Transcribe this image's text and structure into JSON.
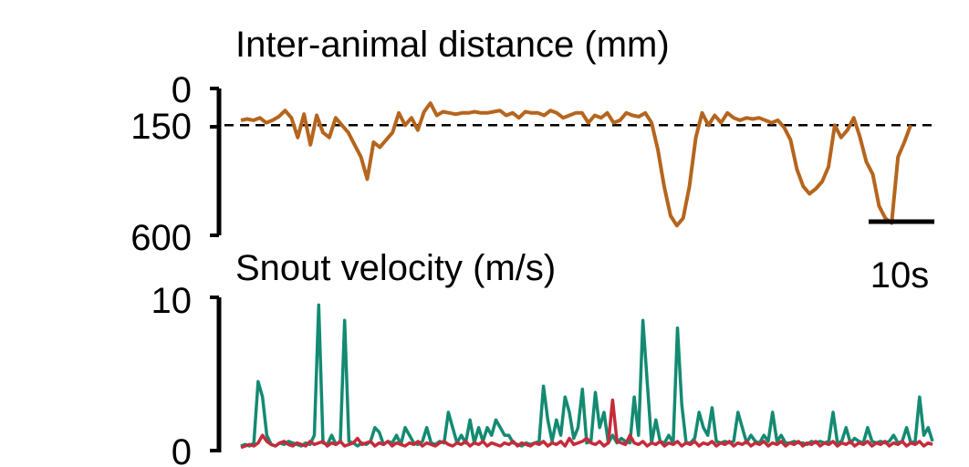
{
  "chart_data": [
    {
      "type": "line",
      "title": "Inter-animal distance (mm)",
      "xlabel": "",
      "ylabel": "",
      "ylim": [
        0,
        600
      ],
      "y_inverted": true,
      "yticks": [
        "0",
        "150",
        "600"
      ],
      "reference_line": {
        "y": 150,
        "style": "dashed"
      },
      "scale_bar": {
        "label": "10s",
        "seconds": 10
      },
      "grid": false,
      "colors": {
        "line": "#b5651d",
        "axis": "#000000"
      },
      "x": [
        0,
        1,
        2,
        3,
        4,
        5,
        6,
        7,
        8,
        9,
        10,
        11,
        12,
        13,
        14,
        15,
        16,
        17,
        18,
        19,
        20,
        21,
        22,
        23,
        24,
        25,
        26,
        27,
        28,
        29,
        30,
        31,
        32,
        33,
        34,
        35,
        36,
        37,
        38,
        39,
        40,
        41,
        42,
        43,
        44,
        45,
        46,
        47,
        48,
        49,
        50,
        51,
        52,
        53,
        54,
        55,
        56,
        57,
        58,
        59,
        60,
        61,
        62,
        63,
        64,
        65,
        66,
        67,
        68,
        69,
        70,
        71,
        72,
        73,
        74,
        75,
        76,
        77,
        78,
        79,
        80,
        81,
        82,
        83,
        84,
        85,
        86,
        87,
        88,
        89,
        90,
        91,
        92,
        93,
        94,
        95,
        96,
        97,
        98,
        99,
        100,
        101,
        102,
        103,
        104,
        105,
        106
      ],
      "values": [
        130,
        125,
        130,
        120,
        140,
        130,
        115,
        90,
        120,
        200,
        105,
        230,
        110,
        180,
        200,
        120,
        150,
        180,
        230,
        280,
        370,
        220,
        240,
        210,
        180,
        100,
        150,
        120,
        170,
        95,
        60,
        110,
        95,
        100,
        105,
        100,
        100,
        95,
        100,
        100,
        95,
        90,
        110,
        100,
        120,
        95,
        100,
        100,
        110,
        90,
        100,
        120,
        110,
        100,
        100,
        140,
        110,
        120,
        100,
        140,
        130,
        100,
        110,
        115,
        100,
        140,
        250,
        400,
        520,
        560,
        530,
        400,
        200,
        100,
        150,
        110,
        140,
        100,
        120,
        130,
        120,
        125,
        120,
        130,
        140,
        130,
        160,
        210,
        330,
        400,
        430,
        410,
        380,
        320,
        150,
        200,
        170,
        120,
        200,
        300,
        350,
        480,
        530,
        550,
        280,
        220,
        150
      ]
    },
    {
      "type": "line",
      "title": "Snout velocity (m/s)",
      "xlabel": "",
      "ylabel": "",
      "ylim": [
        0,
        10
      ],
      "yticks": [
        "0",
        "10"
      ],
      "grid": false,
      "colors": {
        "series_1": "#138a72",
        "series_2": "#c62b3a",
        "axis": "#000000"
      },
      "x": [
        0,
        1,
        2,
        3,
        4,
        5,
        6,
        7,
        8,
        9,
        10,
        11,
        12,
        13,
        14,
        15,
        16,
        17,
        18,
        19,
        20,
        21,
        22,
        23,
        24,
        25,
        26,
        27,
        28,
        29,
        30,
        31,
        32,
        33,
        34,
        35,
        36,
        37,
        38,
        39,
        40,
        41,
        42,
        43,
        44,
        45,
        46,
        47,
        48,
        49,
        50,
        51,
        52,
        53,
        54,
        55,
        56,
        57,
        58,
        59,
        60,
        61,
        62,
        63,
        64,
        65,
        66,
        67,
        68,
        69,
        70,
        71,
        72,
        73,
        74,
        75,
        76,
        77,
        78,
        79,
        80,
        81,
        82,
        83,
        84,
        85,
        86,
        87,
        88,
        89,
        90,
        91,
        92,
        93,
        94,
        95,
        96,
        97,
        98,
        99,
        100,
        101,
        102,
        103,
        104,
        105,
        106,
        107,
        108,
        109,
        110,
        111,
        112,
        113,
        114,
        115,
        116,
        117,
        118,
        119,
        120,
        121,
        122,
        123,
        124,
        125,
        126,
        127,
        128,
        129,
        130,
        131,
        132,
        133,
        134,
        135,
        136,
        137,
        138,
        139,
        140,
        141,
        142,
        143,
        144,
        145,
        146,
        147,
        148,
        149,
        150,
        151,
        152,
        153,
        154,
        155,
        156,
        157,
        158,
        159,
        160
      ],
      "series": [
        {
          "values": [
            0.3,
            0.4,
            0.3,
            0.5,
            4.5,
            3.5,
            1.0,
            0.4,
            0.3,
            0.5,
            0.4,
            0.6,
            0.5,
            0.4,
            0.3,
            0.5,
            0.4,
            1.0,
            9.5,
            0.5,
            0.4,
            1.0,
            0.4,
            0.6,
            8.5,
            0.6,
            0.5,
            0.3,
            0.5,
            0.4,
            0.6,
            1.5,
            1.2,
            0.4,
            0.6,
            0.5,
            1.0,
            0.4,
            1.5,
            1.0,
            0.5,
            0.4,
            0.6,
            1.5,
            0.5,
            0.4,
            0.6,
            0.5,
            2.5,
            1.5,
            0.5,
            1.0,
            0.5,
            2.0,
            0.5,
            1.5,
            0.6,
            1.5,
            1.0,
            2.0,
            1.5,
            1.0,
            1.0,
            0.5,
            0.4,
            0.3,
            0.5,
            0.4,
            0.5,
            0.6,
            4.2,
            2.0,
            0.6,
            2.0,
            1.0,
            3.5,
            2.5,
            0.8,
            1.5,
            4.0,
            0.5,
            0.6,
            3.8,
            1.5,
            2.5,
            0.5,
            1.0,
            0.5,
            0.8,
            0.6,
            0.5,
            3.5,
            1.0,
            8.5,
            4.5,
            0.5,
            2.0,
            0.6,
            0.5,
            1.0,
            0.5,
            8.0,
            3.0,
            0.5,
            0.5,
            0.8,
            2.5,
            1.5,
            1.0,
            2.8,
            0.6,
            0.5,
            0.6,
            0.5,
            0.6,
            2.5,
            1.5,
            0.5,
            1.0,
            0.6,
            0.5,
            1.0,
            0.6,
            2.5,
            0.6,
            1.0,
            0.5,
            0.5,
            0.6,
            0.5,
            0.5,
            0.4,
            0.6,
            0.5,
            0.6,
            0.5,
            0.6,
            2.5,
            0.5,
            0.6,
            1.5,
            0.5,
            0.8,
            0.6,
            0.5,
            1.5,
            0.6,
            0.5,
            0.6,
            0.5,
            0.6,
            1.0,
            0.5,
            0.6,
            1.5,
            0.5,
            0.6,
            3.5,
            1.0,
            1.5,
            0.6
          ],
          "color": "#138a72"
        },
        {
          "values": [
            0.2,
            0.3,
            0.4,
            0.3,
            0.5,
            1.0,
            0.6,
            0.4,
            0.3,
            0.5,
            0.6,
            0.4,
            0.3,
            0.5,
            0.4,
            0.3,
            0.6,
            0.4,
            0.5,
            0.6,
            0.3,
            0.5,
            0.4,
            0.6,
            0.3,
            0.4,
            0.5,
            0.8,
            0.4,
            0.5,
            0.6,
            0.3,
            0.5,
            0.4,
            0.6,
            0.3,
            0.5,
            0.4,
            0.3,
            0.5,
            0.4,
            0.6,
            0.3,
            0.5,
            0.4,
            0.3,
            0.5,
            0.6,
            0.4,
            0.3,
            0.5,
            0.4,
            0.6,
            0.3,
            0.5,
            0.4,
            0.6,
            0.3,
            0.5,
            0.4,
            0.3,
            0.5,
            0.4,
            0.6,
            0.3,
            0.5,
            0.4,
            0.3,
            0.5,
            0.4,
            0.6,
            0.3,
            0.5,
            0.4,
            0.6,
            0.3,
            0.8,
            0.4,
            0.5,
            0.6,
            0.8,
            0.5,
            0.4,
            0.6,
            0.3,
            0.5,
            3.3,
            0.6,
            0.5,
            0.4,
            1.0,
            0.5,
            0.4,
            0.6,
            0.3,
            0.5,
            0.4,
            0.6,
            0.3,
            0.5,
            0.4,
            0.6,
            0.3,
            0.5,
            0.4,
            0.6,
            0.3,
            0.5,
            0.4,
            0.6,
            0.3,
            0.5,
            0.4,
            0.6,
            0.3,
            0.5,
            0.4,
            0.6,
            0.3,
            0.5,
            0.4,
            0.6,
            0.3,
            0.5,
            0.4,
            0.6,
            0.3,
            0.5,
            0.4,
            0.6,
            0.3,
            0.5,
            0.4,
            0.6,
            0.3,
            0.5,
            0.4,
            0.6,
            0.3,
            0.5,
            0.4,
            0.6,
            0.3,
            0.5,
            0.4,
            0.6,
            0.3,
            0.5,
            0.4,
            0.6,
            0.3,
            0.5,
            0.4,
            0.6,
            0.3,
            0.5,
            0.4,
            0.6,
            0.3,
            0.5,
            0.4
          ],
          "color": "#c62b3a"
        }
      ]
    }
  ]
}
